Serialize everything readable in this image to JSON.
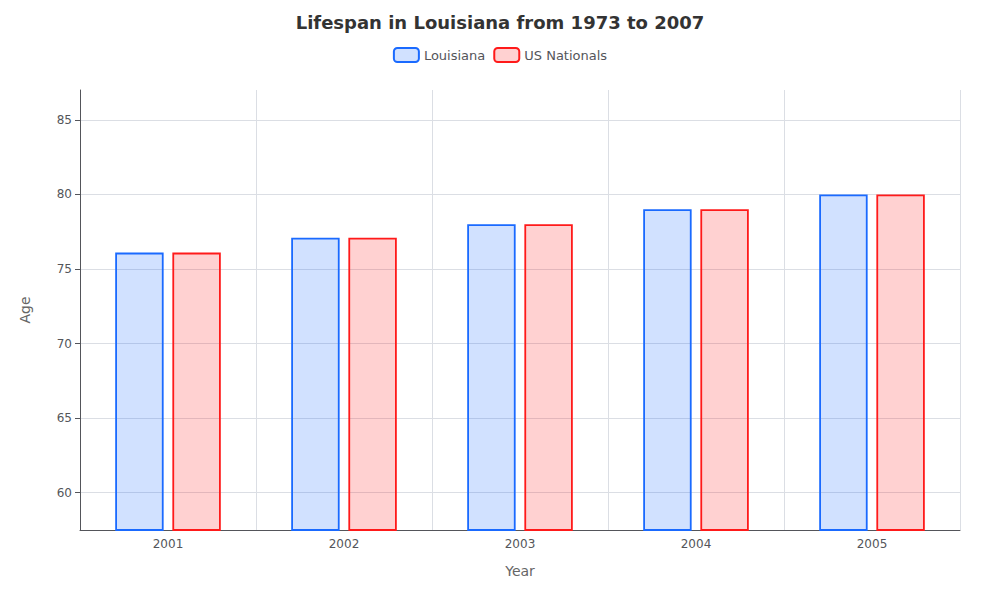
{
  "chart_data": {
    "type": "bar",
    "title": "Lifespan in Louisiana from 1973 to 2007",
    "xlabel": "Year",
    "ylabel": "Age",
    "categories": [
      "2001",
      "2002",
      "2003",
      "2004",
      "2005"
    ],
    "series": [
      {
        "name": "Louisiana",
        "color": "#1a6aff",
        "values": [
          76.1,
          77.1,
          78.0,
          79.0,
          80.0
        ]
      },
      {
        "name": "US Nationals",
        "color": "#ff1a1a",
        "values": [
          76.1,
          77.1,
          78.0,
          79.0,
          80.0
        ]
      }
    ],
    "ylim": [
      57.5,
      87
    ],
    "yticks": [
      60,
      65,
      70,
      75,
      80,
      85
    ],
    "grid": true,
    "legend": "top"
  }
}
